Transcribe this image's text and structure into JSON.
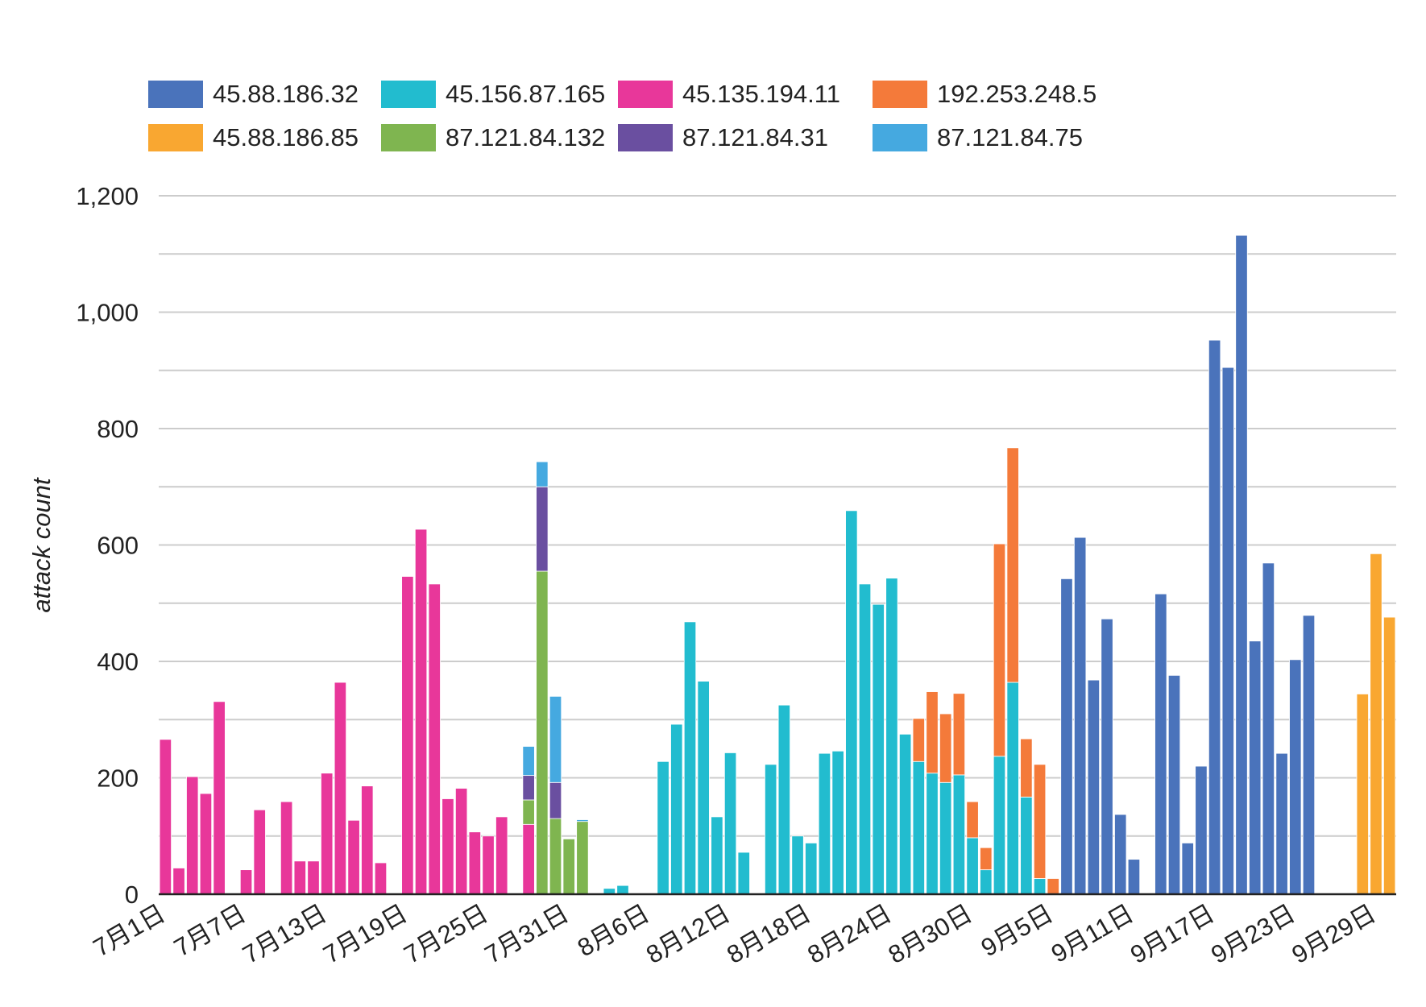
{
  "chart_data": {
    "type": "bar",
    "stacked": true,
    "ylabel": "attack count",
    "ylim": [
      0,
      1200
    ],
    "yticks": [
      "0",
      "200",
      "400",
      "600",
      "800",
      "1,000",
      "1,200"
    ],
    "ytick_values": [
      0,
      200,
      400,
      600,
      800,
      1000,
      1200
    ],
    "xtick_labels": [
      "7月1日",
      "7月7日",
      "7月13日",
      "7月19日",
      "7月25日",
      "7月31日",
      "8月6日",
      "8月12日",
      "8月18日",
      "8月24日",
      "8月30日",
      "9月5日",
      "9月11日",
      "9月17日",
      "9月23日",
      "9月29日"
    ],
    "legend_position": "top",
    "grid": true,
    "categories": [
      "7月1日",
      "7月2日",
      "7月3日",
      "7月4日",
      "7月5日",
      "7月6日",
      "7月7日",
      "7月8日",
      "7月9日",
      "7月10日",
      "7月11日",
      "7月12日",
      "7月13日",
      "7月14日",
      "7月15日",
      "7月16日",
      "7月17日",
      "7月18日",
      "7月19日",
      "7月20日",
      "7月21日",
      "7月22日",
      "7月23日",
      "7月24日",
      "7月25日",
      "7月26日",
      "7月27日",
      "7月28日",
      "7月29日",
      "7月30日",
      "7月31日",
      "8月1日",
      "8月2日",
      "8月3日",
      "8月4日",
      "8月5日",
      "8月6日",
      "8月7日",
      "8月8日",
      "8月9日",
      "8月10日",
      "8月11日",
      "8月12日",
      "8月13日",
      "8月14日",
      "8月15日",
      "8月16日",
      "8月17日",
      "8月18日",
      "8月19日",
      "8月20日",
      "8月21日",
      "8月22日",
      "8月23日",
      "8月24日",
      "8月25日",
      "8月26日",
      "8月27日",
      "8月28日",
      "8月29日",
      "8月30日",
      "8月31日",
      "9月1日",
      "9月2日",
      "9月3日",
      "9月4日",
      "9月5日",
      "9月6日",
      "9月7日",
      "9月8日",
      "9月9日",
      "9月10日",
      "9月11日",
      "9月12日",
      "9月13日",
      "9月14日",
      "9月15日",
      "9月16日",
      "9月17日",
      "9月18日",
      "9月19日",
      "9月20日",
      "9月21日",
      "9月22日",
      "9月23日",
      "9月24日",
      "9月25日",
      "9月26日",
      "9月27日",
      "9月28日",
      "9月29日",
      "9月30日"
    ],
    "series": [
      {
        "name": "45.135.194.11",
        "color": "#e8379a",
        "values": [
          266,
          45,
          202,
          173,
          331,
          0,
          42,
          145,
          0,
          159,
          57,
          57,
          208,
          364,
          127,
          186,
          54,
          0,
          546,
          627,
          533,
          164,
          182,
          107,
          100,
          133,
          0,
          120,
          0,
          0,
          0,
          0,
          0,
          0,
          0,
          0,
          0,
          0,
          0,
          0,
          0,
          0,
          0,
          0,
          0,
          0,
          0,
          0,
          0,
          0,
          0,
          0,
          0,
          0,
          0,
          0,
          0,
          0,
          0,
          0,
          0,
          0,
          0,
          0,
          0,
          0,
          0,
          0,
          0,
          0,
          0,
          0,
          0,
          0,
          0,
          0,
          0,
          0,
          0,
          0,
          0,
          0,
          0,
          0,
          0,
          0,
          0,
          0,
          0,
          0,
          0,
          0
        ]
      },
      {
        "name": "87.121.84.132",
        "color": "#7fb550",
        "values": [
          0,
          0,
          0,
          0,
          0,
          0,
          0,
          0,
          0,
          0,
          0,
          0,
          0,
          0,
          0,
          0,
          0,
          0,
          0,
          0,
          0,
          0,
          0,
          0,
          0,
          0,
          0,
          42,
          555,
          130,
          95,
          125,
          0,
          0,
          0,
          0,
          0,
          0,
          0,
          0,
          0,
          0,
          0,
          0,
          0,
          0,
          0,
          0,
          0,
          0,
          0,
          0,
          0,
          0,
          0,
          0,
          0,
          0,
          0,
          0,
          0,
          0,
          0,
          0,
          0,
          0,
          0,
          0,
          0,
          0,
          0,
          0,
          0,
          0,
          0,
          0,
          0,
          0,
          0,
          0,
          0,
          0,
          0,
          0,
          0,
          0,
          0,
          0,
          0,
          0,
          0,
          0
        ]
      },
      {
        "name": "87.121.84.31",
        "color": "#6a4fa0",
        "values": [
          0,
          0,
          0,
          0,
          0,
          0,
          0,
          0,
          0,
          0,
          0,
          0,
          0,
          0,
          0,
          0,
          0,
          0,
          0,
          0,
          0,
          0,
          0,
          0,
          0,
          0,
          0,
          42,
          145,
          62,
          0,
          0,
          0,
          0,
          0,
          0,
          0,
          0,
          0,
          0,
          0,
          0,
          0,
          0,
          0,
          0,
          0,
          0,
          0,
          0,
          0,
          0,
          0,
          0,
          0,
          0,
          0,
          0,
          0,
          0,
          0,
          0,
          0,
          0,
          0,
          0,
          0,
          0,
          0,
          0,
          0,
          0,
          0,
          0,
          0,
          0,
          0,
          0,
          0,
          0,
          0,
          0,
          0,
          0,
          0,
          0,
          0,
          0,
          0,
          0,
          0,
          0
        ]
      },
      {
        "name": "87.121.84.75",
        "color": "#45a9e0",
        "values": [
          0,
          0,
          0,
          0,
          0,
          0,
          0,
          0,
          0,
          0,
          0,
          0,
          0,
          0,
          0,
          0,
          0,
          0,
          0,
          0,
          0,
          0,
          0,
          0,
          0,
          0,
          0,
          50,
          43,
          148,
          0,
          3,
          0,
          0,
          0,
          0,
          0,
          0,
          0,
          0,
          0,
          0,
          0,
          0,
          0,
          0,
          0,
          0,
          0,
          0,
          0,
          0,
          0,
          0,
          0,
          0,
          0,
          0,
          0,
          0,
          0,
          0,
          0,
          0,
          0,
          0,
          0,
          0,
          0,
          0,
          0,
          0,
          0,
          0,
          0,
          0,
          0,
          0,
          0,
          0,
          0,
          0,
          0,
          0,
          0,
          0,
          0,
          0,
          0,
          0,
          0,
          0
        ]
      },
      {
        "name": "45.156.87.165",
        "color": "#22bccf",
        "values": [
          0,
          0,
          0,
          0,
          0,
          0,
          0,
          0,
          0,
          0,
          0,
          0,
          0,
          0,
          0,
          0,
          0,
          0,
          0,
          0,
          0,
          0,
          0,
          0,
          0,
          0,
          0,
          0,
          0,
          0,
          0,
          0,
          0,
          10,
          15,
          0,
          0,
          228,
          292,
          468,
          366,
          133,
          243,
          72,
          0,
          223,
          325,
          100,
          88,
          242,
          246,
          659,
          533,
          498,
          543,
          275,
          228,
          208,
          192,
          205,
          97,
          42,
          237,
          364,
          167,
          27,
          0,
          0,
          0,
          0,
          0,
          0,
          0,
          0,
          0,
          0,
          0,
          0,
          0,
          0,
          0,
          0,
          0,
          0,
          0,
          0,
          0,
          0,
          0,
          0,
          0,
          0
        ]
      },
      {
        "name": "192.253.248.5",
        "color": "#f47a3a",
        "values": [
          0,
          0,
          0,
          0,
          0,
          0,
          0,
          0,
          0,
          0,
          0,
          0,
          0,
          0,
          0,
          0,
          0,
          0,
          0,
          0,
          0,
          0,
          0,
          0,
          0,
          0,
          0,
          0,
          0,
          0,
          0,
          0,
          0,
          0,
          0,
          0,
          0,
          0,
          0,
          0,
          0,
          0,
          0,
          0,
          0,
          0,
          0,
          0,
          0,
          0,
          0,
          0,
          0,
          0,
          0,
          0,
          74,
          140,
          118,
          140,
          62,
          38,
          365,
          403,
          100,
          196,
          27,
          0,
          0,
          0,
          0,
          0,
          0,
          0,
          0,
          0,
          0,
          0,
          0,
          0,
          0,
          0,
          0,
          0,
          0,
          0,
          0,
          0,
          0,
          0,
          0,
          0
        ]
      },
      {
        "name": "45.88.186.32",
        "color": "#4a73bb",
        "values": [
          0,
          0,
          0,
          0,
          0,
          0,
          0,
          0,
          0,
          0,
          0,
          0,
          0,
          0,
          0,
          0,
          0,
          0,
          0,
          0,
          0,
          0,
          0,
          0,
          0,
          0,
          0,
          0,
          0,
          0,
          0,
          0,
          0,
          0,
          0,
          0,
          0,
          0,
          0,
          0,
          0,
          0,
          0,
          0,
          0,
          0,
          0,
          0,
          0,
          0,
          0,
          0,
          0,
          0,
          0,
          0,
          0,
          0,
          0,
          0,
          0,
          0,
          0,
          0,
          0,
          0,
          0,
          542,
          613,
          368,
          473,
          137,
          60,
          0,
          516,
          376,
          88,
          220,
          952,
          905,
          1132,
          435,
          569,
          242,
          403,
          479,
          0,
          0,
          0,
          0,
          0,
          0
        ]
      },
      {
        "name": "45.88.186.85",
        "color": "#f9a731",
        "values": [
          0,
          0,
          0,
          0,
          0,
          0,
          0,
          0,
          0,
          0,
          0,
          0,
          0,
          0,
          0,
          0,
          0,
          0,
          0,
          0,
          0,
          0,
          0,
          0,
          0,
          0,
          0,
          0,
          0,
          0,
          0,
          0,
          0,
          0,
          0,
          0,
          0,
          0,
          0,
          0,
          0,
          0,
          0,
          0,
          0,
          0,
          0,
          0,
          0,
          0,
          0,
          0,
          0,
          0,
          0,
          0,
          0,
          0,
          0,
          0,
          0,
          0,
          0,
          0,
          0,
          0,
          0,
          0,
          0,
          0,
          0,
          0,
          0,
          0,
          0,
          0,
          0,
          0,
          0,
          0,
          0,
          0,
          0,
          0,
          0,
          0,
          0,
          0,
          0,
          344,
          585,
          476
        ]
      }
    ]
  },
  "legend": [
    {
      "label": "45.88.186.32",
      "color": "#4a73bb"
    },
    {
      "label": "45.156.87.165",
      "color": "#22bccf"
    },
    {
      "label": "45.135.194.11",
      "color": "#e8379a"
    },
    {
      "label": "192.253.248.5",
      "color": "#f47a3a"
    },
    {
      "label": "45.88.186.85",
      "color": "#f9a731"
    },
    {
      "label": "87.121.84.132",
      "color": "#7fb550"
    },
    {
      "label": "87.121.84.31",
      "color": "#6a4fa0"
    },
    {
      "label": "87.121.84.75",
      "color": "#45a9e0"
    }
  ]
}
